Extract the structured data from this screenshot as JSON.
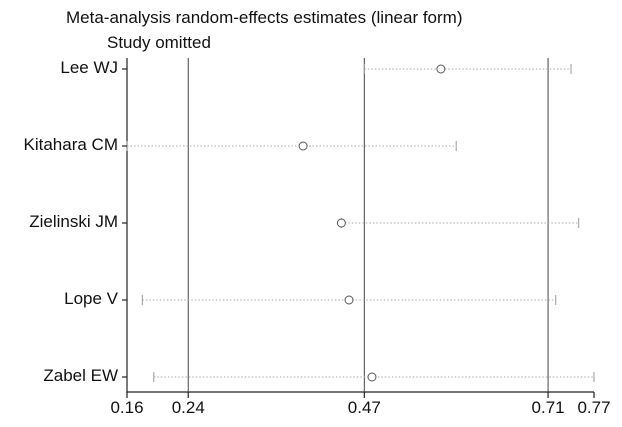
{
  "chart_data": {
    "type": "scatter",
    "title": "Meta-analysis random-effects estimates (linear form)",
    "subtitle": "Study omitted",
    "xlim": [
      0.16,
      0.77
    ],
    "x_ticks": [
      "0.16",
      "0.24",
      "0.47",
      "0.71",
      "0.77"
    ],
    "vertical_reference_lines": [
      0.24,
      0.47,
      0.71
    ],
    "grid": false,
    "studies": [
      {
        "label": "Lee WJ",
        "estimate": 0.57,
        "ci_lower": 0.47,
        "ci_upper": 0.74
      },
      {
        "label": "Kitahara CM",
        "estimate": 0.39,
        "ci_lower": 0.16,
        "ci_upper": 0.59
      },
      {
        "label": "Zielinski JM",
        "estimate": 0.44,
        "ci_lower": 0.44,
        "ci_upper": 0.75
      },
      {
        "label": "Lope V",
        "estimate": 0.45,
        "ci_lower": 0.18,
        "ci_upper": 0.72
      },
      {
        "label": "Zabel EW",
        "estimate": 0.48,
        "ci_lower": 0.195,
        "ci_upper": 0.77
      }
    ]
  }
}
